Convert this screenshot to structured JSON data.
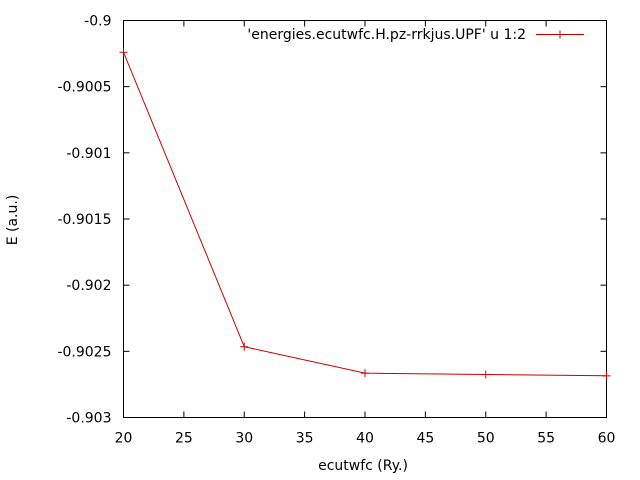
{
  "chart_data": {
    "type": "line",
    "xlabel": "ecutwfc (Ry.)",
    "ylabel": "E (a.u.)",
    "xlim": [
      20,
      60
    ],
    "ylim": [
      -0.903,
      -0.9
    ],
    "x_ticks": [
      20,
      25,
      30,
      35,
      40,
      45,
      50,
      55,
      60
    ],
    "x_tick_labels": [
      "20",
      "25",
      "30",
      "35",
      "40",
      "45",
      "50",
      "55",
      "60"
    ],
    "y_ticks": [
      -0.9,
      -0.9005,
      -0.901,
      -0.9015,
      -0.902,
      -0.9025,
      -0.903
    ],
    "y_tick_labels": [
      "-0.9",
      "-0.9005",
      "-0.901",
      "-0.9015",
      "-0.902",
      "-0.9025",
      "-0.903"
    ],
    "grid": false,
    "legend_position": "top-right",
    "series": [
      {
        "name": "'energies.ecutwfc.H.pz-rrkjus.UPF' u 1:2",
        "color": "#cc0000",
        "marker": "plus",
        "x": [
          20,
          30,
          40,
          50,
          60
        ],
        "y": [
          -0.90024,
          -0.902465,
          -0.902665,
          -0.902675,
          -0.902685
        ]
      }
    ]
  }
}
